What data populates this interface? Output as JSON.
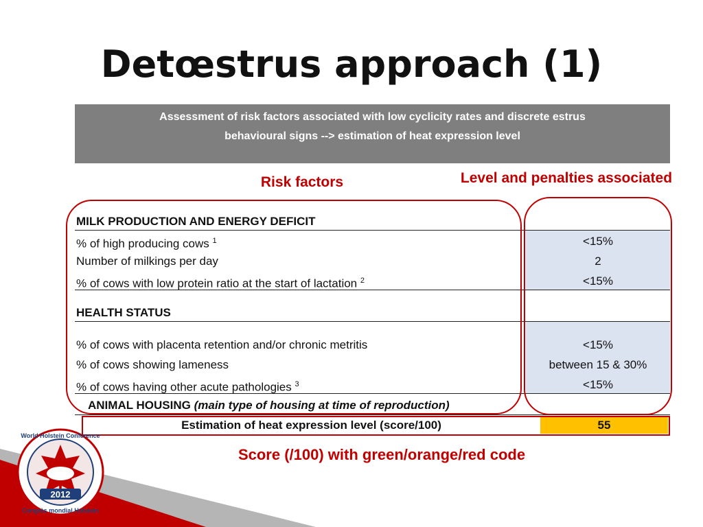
{
  "slide": {
    "title": "Detœstrus approach (1)",
    "header_line1": "Assessment of risk factors associated with low cyclicity rates and discrete estrus",
    "header_line2": "behavioural signs --> estimation of heat expression level",
    "risk_factors_label": "Risk factors",
    "level_label": "Level and penalties associated"
  },
  "sections": {
    "milk": {
      "title": "MILK PRODUCTION AND ENERGY DEFICIT",
      "rows": [
        {
          "label": "% of high producing cows",
          "sup": "1",
          "value": "<15%"
        },
        {
          "label": "Number of milkings per day",
          "sup": "",
          "value": "2"
        },
        {
          "label": "% of cows with low protein ratio at the start of lactation",
          "sup": "2",
          "value": "<15%"
        }
      ]
    },
    "health": {
      "title": "HEALTH STATUS",
      "rows": [
        {
          "label": "% of cows with placenta retention and/or chronic metritis",
          "sup": "",
          "value": "<15%"
        },
        {
          "label": "% of cows showing lameness",
          "sup": "",
          "value": "between 15 & 30%"
        },
        {
          "label": "% of cows having other acute pathologies",
          "sup": "3",
          "value": "<15%"
        }
      ]
    },
    "housing": {
      "title": "ANIMAL HOUSING",
      "note": "(main type of housing at time of reproduction)"
    }
  },
  "estimation": {
    "label": "Estimation of heat expression level (score/100)",
    "value": "55"
  },
  "score_note": "Score (/100) with green/orange/red code",
  "logo": {
    "text_top": "World Holstein Conference",
    "text_bottom": "Congrès mondial Holstein",
    "year": "2012"
  },
  "colors": {
    "accent_red": "#c00000",
    "header_gray": "#7f7f7f",
    "value_bg": "#dbe2f0",
    "score_orange": "#ffc000"
  }
}
